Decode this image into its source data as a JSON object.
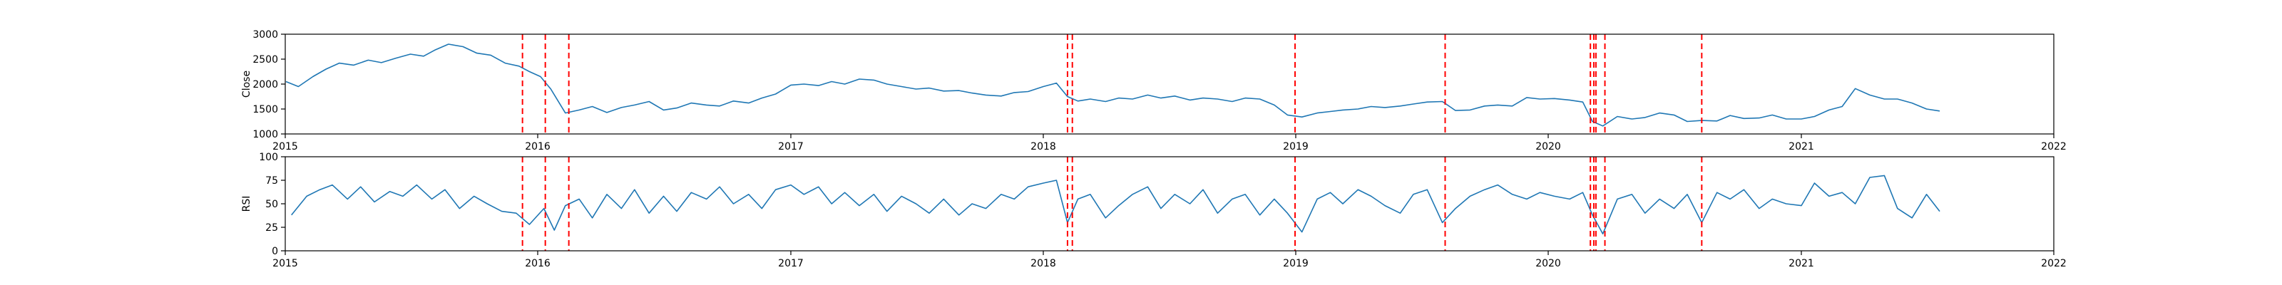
{
  "chart_data": [
    {
      "type": "line",
      "ylabel": "Close",
      "xlim": [
        "2015-01-01",
        "2022-01-01"
      ],
      "ylim": [
        1000,
        3000
      ],
      "xticks": [
        "2015",
        "2016",
        "2017",
        "2018",
        "2019",
        "2020",
        "2021",
        "2022"
      ],
      "yticks": [
        "1000",
        "1500",
        "2000",
        "2500",
        "3000"
      ],
      "line_color": "#1f77b4",
      "vline_color": "#ff0000",
      "series": [
        {
          "x": [
            "2015-01-02",
            "2015-01-20",
            "2015-02-10",
            "2015-03-01",
            "2015-03-20",
            "2015-04-10",
            "2015-05-01",
            "2015-05-20",
            "2015-06-10",
            "2015-07-01",
            "2015-07-20",
            "2015-08-05",
            "2015-08-25",
            "2015-09-15",
            "2015-10-05",
            "2015-10-25",
            "2015-11-15",
            "2015-12-05",
            "2015-12-20",
            "2016-01-05",
            "2016-01-20",
            "2016-02-10",
            "2016-03-01",
            "2016-03-20",
            "2016-04-10",
            "2016-05-01",
            "2016-05-20",
            "2016-06-10",
            "2016-07-01",
            "2016-07-20",
            "2016-08-10",
            "2016-09-01",
            "2016-09-20",
            "2016-10-10",
            "2016-11-01",
            "2016-11-20",
            "2016-12-10",
            "2017-01-01",
            "2017-01-20",
            "2017-02-10",
            "2017-03-01",
            "2017-03-20",
            "2017-04-10",
            "2017-05-01",
            "2017-05-20",
            "2017-06-10",
            "2017-07-01",
            "2017-07-20",
            "2017-08-10",
            "2017-09-01",
            "2017-09-20",
            "2017-10-10",
            "2017-11-01",
            "2017-11-20",
            "2017-12-10",
            "2018-01-01",
            "2018-01-20",
            "2018-02-05",
            "2018-02-20",
            "2018-03-10",
            "2018-04-01",
            "2018-04-20",
            "2018-05-10",
            "2018-06-01",
            "2018-06-20",
            "2018-07-10",
            "2018-08-01",
            "2018-08-20",
            "2018-09-10",
            "2018-10-01",
            "2018-10-20",
            "2018-11-10",
            "2018-12-01",
            "2018-12-20",
            "2019-01-10",
            "2019-02-01",
            "2019-02-20",
            "2019-03-10",
            "2019-04-01",
            "2019-04-20",
            "2019-05-10",
            "2019-06-01",
            "2019-06-20",
            "2019-07-10",
            "2019-08-01",
            "2019-08-20",
            "2019-09-10",
            "2019-10-01",
            "2019-10-20",
            "2019-11-10",
            "2019-12-01",
            "2019-12-20",
            "2020-01-10",
            "2020-02-01",
            "2020-02-20",
            "2020-03-05",
            "2020-03-20",
            "2020-04-10",
            "2020-05-01",
            "2020-05-20",
            "2020-06-10",
            "2020-07-01",
            "2020-07-20",
            "2020-08-10",
            "2020-09-01",
            "2020-09-20",
            "2020-10-10",
            "2020-11-01",
            "2020-11-20",
            "2020-12-10",
            "2021-01-01",
            "2021-01-20",
            "2021-02-10",
            "2021-03-01",
            "2021-03-20",
            "2021-04-10",
            "2021-05-01",
            "2021-05-20",
            "2021-06-10",
            "2021-07-01",
            "2021-07-20"
          ],
          "values": [
            2050,
            1950,
            2150,
            2300,
            2420,
            2380,
            2480,
            2430,
            2520,
            2600,
            2560,
            2680,
            2800,
            2750,
            2620,
            2580,
            2420,
            2360,
            2250,
            2150,
            1900,
            1420,
            1480,
            1550,
            1430,
            1530,
            1580,
            1650,
            1480,
            1520,
            1620,
            1580,
            1560,
            1660,
            1620,
            1720,
            1800,
            1980,
            2000,
            1970,
            2050,
            2000,
            2100,
            2080,
            2000,
            1950,
            1900,
            1920,
            1860,
            1870,
            1820,
            1780,
            1760,
            1830,
            1850,
            1950,
            2020,
            1750,
            1660,
            1700,
            1650,
            1720,
            1700,
            1780,
            1720,
            1760,
            1680,
            1720,
            1700,
            1650,
            1720,
            1700,
            1580,
            1380,
            1340,
            1420,
            1450,
            1480,
            1500,
            1550,
            1530,
            1560,
            1600,
            1640,
            1650,
            1470,
            1480,
            1560,
            1580,
            1560,
            1730,
            1700,
            1710,
            1680,
            1640,
            1250,
            1160,
            1350,
            1300,
            1330,
            1420,
            1380,
            1250,
            1270,
            1260,
            1370,
            1310,
            1320,
            1380,
            1300,
            1300,
            1350,
            1480,
            1550,
            1910,
            1780,
            1700,
            1700,
            1620,
            1500,
            1460
          ]
        }
      ],
      "vlines": [
        "2015-12-10",
        "2016-01-12",
        "2016-02-15",
        "2018-02-05",
        "2018-02-12",
        "2018-12-31",
        "2019-08-05",
        "2020-03-02",
        "2020-03-07",
        "2020-03-10",
        "2020-03-23",
        "2020-08-10"
      ]
    },
    {
      "type": "line",
      "ylabel": "RSI",
      "xlim": [
        "2015-01-01",
        "2022-01-01"
      ],
      "ylim": [
        0,
        100
      ],
      "xticks": [
        "2015",
        "2016",
        "2017",
        "2018",
        "2019",
        "2020",
        "2021",
        "2022"
      ],
      "yticks": [
        "0",
        "25",
        "50",
        "75",
        "100"
      ],
      "line_color": "#1f77b4",
      "vline_color": "#ff0000",
      "series": [
        {
          "x": [
            "2015-01-10",
            "2015-02-01",
            "2015-02-20",
            "2015-03-10",
            "2015-04-01",
            "2015-04-20",
            "2015-05-10",
            "2015-06-01",
            "2015-06-20",
            "2015-07-10",
            "2015-08-01",
            "2015-08-20",
            "2015-09-10",
            "2015-10-01",
            "2015-10-20",
            "2015-11-10",
            "2015-12-01",
            "2015-12-20",
            "2016-01-10",
            "2016-01-25",
            "2016-02-10",
            "2016-03-01",
            "2016-03-20",
            "2016-04-10",
            "2016-05-01",
            "2016-05-20",
            "2016-06-10",
            "2016-07-01",
            "2016-07-20",
            "2016-08-10",
            "2016-09-01",
            "2016-09-20",
            "2016-10-10",
            "2016-11-01",
            "2016-11-20",
            "2016-12-10",
            "2017-01-01",
            "2017-01-20",
            "2017-02-10",
            "2017-03-01",
            "2017-03-20",
            "2017-04-10",
            "2017-05-01",
            "2017-05-20",
            "2017-06-10",
            "2017-07-01",
            "2017-07-20",
            "2017-08-10",
            "2017-09-01",
            "2017-09-20",
            "2017-10-10",
            "2017-11-01",
            "2017-11-20",
            "2017-12-10",
            "2018-01-01",
            "2018-01-20",
            "2018-02-05",
            "2018-02-20",
            "2018-03-10",
            "2018-04-01",
            "2018-04-20",
            "2018-05-10",
            "2018-06-01",
            "2018-06-20",
            "2018-07-10",
            "2018-08-01",
            "2018-08-20",
            "2018-09-10",
            "2018-10-01",
            "2018-10-20",
            "2018-11-10",
            "2018-12-01",
            "2018-12-20",
            "2019-01-10",
            "2019-02-01",
            "2019-02-20",
            "2019-03-10",
            "2019-04-01",
            "2019-04-20",
            "2019-05-10",
            "2019-06-01",
            "2019-06-20",
            "2019-07-10",
            "2019-08-01",
            "2019-08-20",
            "2019-09-10",
            "2019-10-01",
            "2019-10-20",
            "2019-11-10",
            "2019-12-01",
            "2019-12-20",
            "2020-01-10",
            "2020-02-01",
            "2020-02-20",
            "2020-03-05",
            "2020-03-20",
            "2020-04-10",
            "2020-05-01",
            "2020-05-20",
            "2020-06-10",
            "2020-07-01",
            "2020-07-20",
            "2020-08-10",
            "2020-09-01",
            "2020-09-20",
            "2020-10-10",
            "2020-11-01",
            "2020-11-20",
            "2020-12-10",
            "2021-01-01",
            "2021-01-20",
            "2021-02-10",
            "2021-03-01",
            "2021-03-20",
            "2021-04-10",
            "2021-05-01",
            "2021-05-20",
            "2021-06-10",
            "2021-07-01",
            "2021-07-20"
          ],
          "values": [
            38,
            58,
            65,
            70,
            55,
            68,
            52,
            63,
            58,
            70,
            55,
            65,
            45,
            58,
            50,
            42,
            40,
            28,
            45,
            22,
            48,
            55,
            35,
            60,
            45,
            65,
            40,
            58,
            42,
            62,
            55,
            68,
            50,
            60,
            45,
            65,
            70,
            60,
            68,
            50,
            62,
            48,
            60,
            42,
            58,
            50,
            40,
            55,
            38,
            50,
            45,
            60,
            55,
            68,
            72,
            75,
            30,
            55,
            60,
            35,
            48,
            60,
            68,
            45,
            60,
            50,
            65,
            40,
            55,
            60,
            38,
            55,
            40,
            20,
            55,
            62,
            50,
            65,
            58,
            48,
            40,
            60,
            65,
            30,
            45,
            58,
            65,
            70,
            60,
            55,
            62,
            58,
            55,
            62,
            38,
            18,
            55,
            60,
            40,
            55,
            45,
            60,
            30,
            62,
            55,
            65,
            45,
            55,
            50,
            48,
            72,
            58,
            62,
            50,
            78,
            80,
            45,
            35,
            60,
            42
          ]
        }
      ],
      "vlines": [
        "2015-12-10",
        "2016-01-12",
        "2016-02-15",
        "2018-02-05",
        "2018-02-12",
        "2018-12-31",
        "2019-08-05",
        "2020-03-02",
        "2020-03-07",
        "2020-03-10",
        "2020-03-23",
        "2020-08-10"
      ]
    }
  ]
}
